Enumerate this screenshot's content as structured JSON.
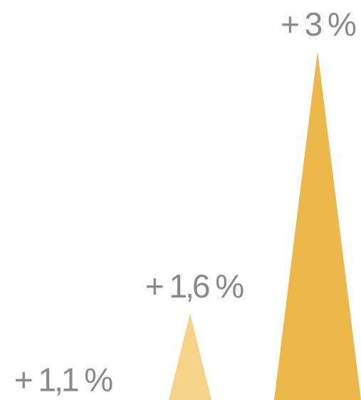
{
  "chart_data": {
    "type": "peak",
    "categories": [
      null,
      null,
      null
    ],
    "values": [
      1.1,
      1.6,
      3
    ],
    "value_labels": [
      "+ 1,1 %",
      "+ 1,6 %",
      "+ 3 %"
    ],
    "colors": [
      "#f7dfa6",
      "#f5d48a",
      "#ecb84a"
    ],
    "ylim": [
      1.136,
      3.274
    ]
  }
}
